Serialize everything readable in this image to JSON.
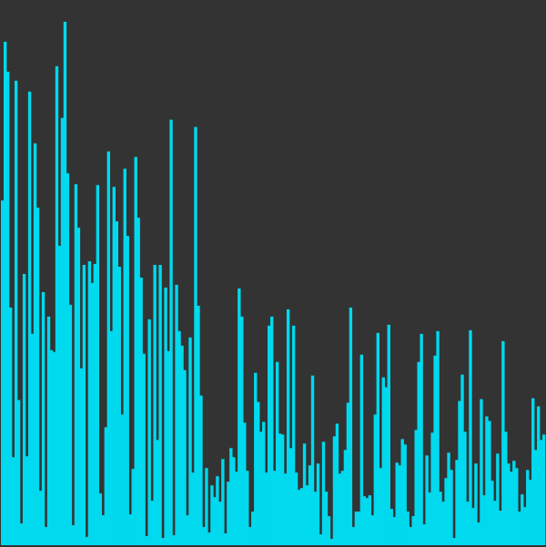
{
  "colors": {
    "background": "#333333",
    "bar": "#00d9ee"
  },
  "chart_data": {
    "type": "bar",
    "title": "",
    "xlabel": "",
    "ylabel": "",
    "grid": false,
    "legend": "none",
    "ylim": [
      0,
      600
    ],
    "values": [
      380,
      555,
      522,
      262,
      97,
      512,
      160,
      24,
      299,
      98,
      500,
      233,
      443,
      372,
      60,
      279,
      20,
      252,
      215,
      213,
      528,
      330,
      471,
      577,
      410,
      265,
      22,
      398,
      350,
      195,
      309,
      9,
      313,
      289,
      310,
      397,
      57,
      33,
      130,
      434,
      236,
      395,
      357,
      307,
      144,
      415,
      341,
      34,
      84,
      428,
      361,
      295,
      211,
      10,
      249,
      49,
      309,
      116,
      309,
      8,
      284,
      214,
      469,
      11,
      287,
      236,
      220,
      193,
      33,
      229,
      80,
      461,
      264,
      165,
      20,
      85,
      14,
      66,
      53,
      76,
      48,
      95,
      13,
      70,
      107,
      97,
      81,
      283,
      252,
      135,
      82,
      20,
      37,
      190,
      158,
      125,
      136,
      80,
      242,
      252,
      82,
      202,
      123,
      122,
      79,
      260,
      107,
      242,
      80,
      61,
      63,
      112,
      66,
      88,
      187,
      59,
      90,
      12,
      114,
      59,
      32,
      7,
      120,
      134,
      79,
      82,
      105,
      157,
      262,
      20,
      37,
      37,
      210,
      54,
      52,
      55,
      33,
      144,
      234,
      85,
      185,
      174,
      243,
      40,
      31,
      91,
      88,
      117,
      111,
      37,
      20,
      32,
      127,
      202,
      233,
      23,
      99,
      58,
      124,
      209,
      236,
      59,
      48,
      74,
      102,
      83,
      8,
      94,
      159,
      188,
      125,
      48,
      237,
      41,
      90,
      25,
      161,
      55,
      142,
      137,
      71,
      49,
      101,
      38,
      225,
      125,
      90,
      81,
      93,
      85,
      37,
      56,
      42,
      83,
      72,
      162,
      105,
      153,
      116,
      122
    ]
  }
}
